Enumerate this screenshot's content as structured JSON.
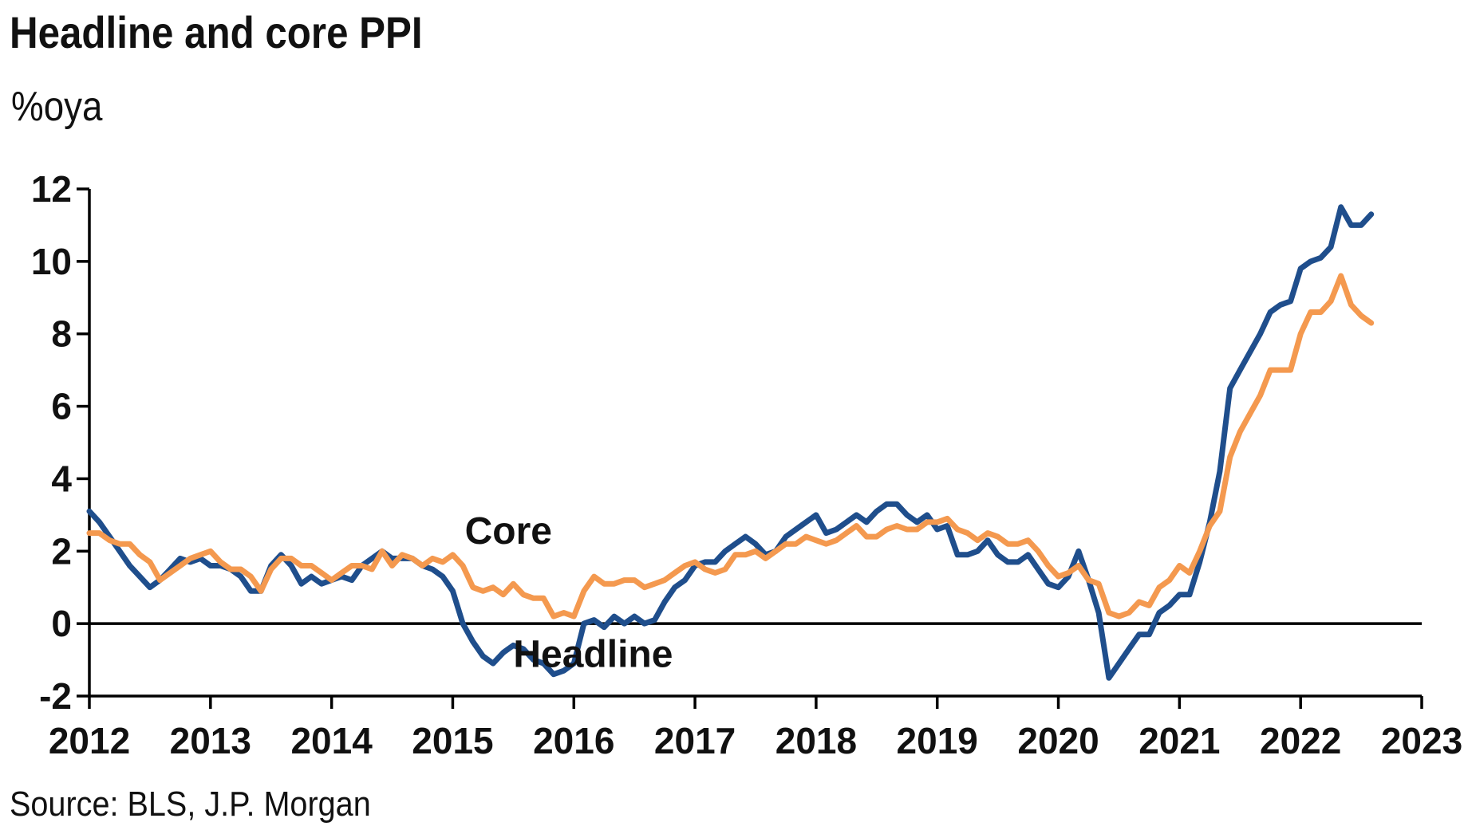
{
  "chart_data": {
    "type": "line",
    "title": "Headline and core PPI",
    "ylabel": "%oya",
    "source": "Source: BLS, J.P. Morgan",
    "ylim": [
      -2,
      12
    ],
    "xlim": [
      2012,
      2023
    ],
    "yticks": [
      "-2",
      "0",
      "2",
      "4",
      "6",
      "8",
      "10",
      "12"
    ],
    "xticks": [
      "2012",
      "2013",
      "2014",
      "2015",
      "2016",
      "2017",
      "2018",
      "2019",
      "2020",
      "2021",
      "2022",
      "2023"
    ],
    "grid": false,
    "series": [
      {
        "name": "Headline",
        "color": "#1f4e8c",
        "label_pos": [
          2015.5,
          -1.2
        ],
        "points": [
          [
            2012.0,
            3.1
          ],
          [
            2012.083,
            2.8
          ],
          [
            2012.167,
            2.4
          ],
          [
            2012.25,
            2.0
          ],
          [
            2012.333,
            1.6
          ],
          [
            2012.417,
            1.3
          ],
          [
            2012.5,
            1.0
          ],
          [
            2012.583,
            1.2
          ],
          [
            2012.667,
            1.5
          ],
          [
            2012.75,
            1.8
          ],
          [
            2012.833,
            1.7
          ],
          [
            2012.917,
            1.8
          ],
          [
            2013.0,
            1.6
          ],
          [
            2013.083,
            1.6
          ],
          [
            2013.167,
            1.5
          ],
          [
            2013.25,
            1.3
          ],
          [
            2013.333,
            0.9
          ],
          [
            2013.417,
            0.9
          ],
          [
            2013.5,
            1.6
          ],
          [
            2013.583,
            1.9
          ],
          [
            2013.667,
            1.6
          ],
          [
            2013.75,
            1.1
          ],
          [
            2013.833,
            1.3
          ],
          [
            2013.917,
            1.1
          ],
          [
            2014.0,
            1.2
          ],
          [
            2014.083,
            1.3
          ],
          [
            2014.167,
            1.2
          ],
          [
            2014.25,
            1.6
          ],
          [
            2014.333,
            1.8
          ],
          [
            2014.417,
            2.0
          ],
          [
            2014.5,
            1.8
          ],
          [
            2014.583,
            1.8
          ],
          [
            2014.667,
            1.8
          ],
          [
            2014.75,
            1.6
          ],
          [
            2014.833,
            1.5
          ],
          [
            2014.917,
            1.3
          ],
          [
            2015.0,
            0.9
          ],
          [
            2015.083,
            0.0
          ],
          [
            2015.167,
            -0.5
          ],
          [
            2015.25,
            -0.9
          ],
          [
            2015.333,
            -1.1
          ],
          [
            2015.417,
            -0.8
          ],
          [
            2015.5,
            -0.6
          ],
          [
            2015.583,
            -0.7
          ],
          [
            2015.667,
            -1.0
          ],
          [
            2015.75,
            -1.1
          ],
          [
            2015.833,
            -1.4
          ],
          [
            2015.917,
            -1.3
          ],
          [
            2016.0,
            -1.1
          ],
          [
            2016.083,
            0.0
          ],
          [
            2016.167,
            0.1
          ],
          [
            2016.25,
            -0.1
          ],
          [
            2016.333,
            0.2
          ],
          [
            2016.417,
            0.0
          ],
          [
            2016.5,
            0.2
          ],
          [
            2016.583,
            0.0
          ],
          [
            2016.667,
            0.1
          ],
          [
            2016.75,
            0.6
          ],
          [
            2016.833,
            1.0
          ],
          [
            2016.917,
            1.2
          ],
          [
            2017.0,
            1.6
          ],
          [
            2017.083,
            1.7
          ],
          [
            2017.167,
            1.7
          ],
          [
            2017.25,
            2.0
          ],
          [
            2017.333,
            2.2
          ],
          [
            2017.417,
            2.4
          ],
          [
            2017.5,
            2.2
          ],
          [
            2017.583,
            1.9
          ],
          [
            2017.667,
            2.0
          ],
          [
            2017.75,
            2.4
          ],
          [
            2017.833,
            2.6
          ],
          [
            2017.917,
            2.8
          ],
          [
            2018.0,
            3.0
          ],
          [
            2018.083,
            2.5
          ],
          [
            2018.167,
            2.6
          ],
          [
            2018.25,
            2.8
          ],
          [
            2018.333,
            3.0
          ],
          [
            2018.417,
            2.8
          ],
          [
            2018.5,
            3.1
          ],
          [
            2018.583,
            3.3
          ],
          [
            2018.667,
            3.3
          ],
          [
            2018.75,
            3.0
          ],
          [
            2018.833,
            2.8
          ],
          [
            2018.917,
            3.0
          ],
          [
            2019.0,
            2.6
          ],
          [
            2019.083,
            2.7
          ],
          [
            2019.167,
            1.9
          ],
          [
            2019.25,
            1.9
          ],
          [
            2019.333,
            2.0
          ],
          [
            2019.417,
            2.3
          ],
          [
            2019.5,
            1.9
          ],
          [
            2019.583,
            1.7
          ],
          [
            2019.667,
            1.7
          ],
          [
            2019.75,
            1.9
          ],
          [
            2019.833,
            1.5
          ],
          [
            2019.917,
            1.1
          ],
          [
            2020.0,
            1.0
          ],
          [
            2020.083,
            1.3
          ],
          [
            2020.167,
            2.0
          ],
          [
            2020.25,
            1.2
          ],
          [
            2020.333,
            0.3
          ],
          [
            2020.417,
            -1.5
          ],
          [
            2020.5,
            -1.1
          ],
          [
            2020.583,
            -0.7
          ],
          [
            2020.667,
            -0.3
          ],
          [
            2020.75,
            -0.3
          ],
          [
            2020.833,
            0.3
          ],
          [
            2020.917,
            0.5
          ],
          [
            2021.0,
            0.8
          ],
          [
            2021.083,
            0.8
          ],
          [
            2021.167,
            1.7
          ],
          [
            2021.25,
            2.8
          ],
          [
            2021.333,
            4.2
          ],
          [
            2021.417,
            6.5
          ],
          [
            2021.5,
            7.0
          ],
          [
            2021.583,
            7.5
          ],
          [
            2021.667,
            8.0
          ],
          [
            2021.75,
            8.6
          ],
          [
            2021.833,
            8.8
          ],
          [
            2021.917,
            8.9
          ],
          [
            2022.0,
            9.8
          ],
          [
            2022.083,
            10.0
          ],
          [
            2022.167,
            10.1
          ],
          [
            2022.25,
            10.4
          ],
          [
            2022.333,
            11.5
          ],
          [
            2022.417,
            11.0
          ],
          [
            2022.5,
            11.0
          ],
          [
            2022.583,
            11.3
          ]
        ]
      },
      {
        "name": "Core",
        "color": "#f4994f",
        "label_pos": [
          2015.1,
          2.2
        ],
        "points": [
          [
            2012.0,
            2.5
          ],
          [
            2012.083,
            2.5
          ],
          [
            2012.167,
            2.3
          ],
          [
            2012.25,
            2.2
          ],
          [
            2012.333,
            2.2
          ],
          [
            2012.417,
            1.9
          ],
          [
            2012.5,
            1.7
          ],
          [
            2012.583,
            1.2
          ],
          [
            2012.667,
            1.4
          ],
          [
            2012.75,
            1.6
          ],
          [
            2012.833,
            1.8
          ],
          [
            2012.917,
            1.9
          ],
          [
            2013.0,
            2.0
          ],
          [
            2013.083,
            1.7
          ],
          [
            2013.167,
            1.5
          ],
          [
            2013.25,
            1.5
          ],
          [
            2013.333,
            1.3
          ],
          [
            2013.417,
            0.9
          ],
          [
            2013.5,
            1.5
          ],
          [
            2013.583,
            1.8
          ],
          [
            2013.667,
            1.8
          ],
          [
            2013.75,
            1.6
          ],
          [
            2013.833,
            1.6
          ],
          [
            2013.917,
            1.4
          ],
          [
            2014.0,
            1.2
          ],
          [
            2014.083,
            1.4
          ],
          [
            2014.167,
            1.6
          ],
          [
            2014.25,
            1.6
          ],
          [
            2014.333,
            1.5
          ],
          [
            2014.417,
            2.0
          ],
          [
            2014.5,
            1.6
          ],
          [
            2014.583,
            1.9
          ],
          [
            2014.667,
            1.8
          ],
          [
            2014.75,
            1.6
          ],
          [
            2014.833,
            1.8
          ],
          [
            2014.917,
            1.7
          ],
          [
            2015.0,
            1.9
          ],
          [
            2015.083,
            1.6
          ],
          [
            2015.167,
            1.0
          ],
          [
            2015.25,
            0.9
          ],
          [
            2015.333,
            1.0
          ],
          [
            2015.417,
            0.8
          ],
          [
            2015.5,
            1.1
          ],
          [
            2015.583,
            0.8
          ],
          [
            2015.667,
            0.7
          ],
          [
            2015.75,
            0.7
          ],
          [
            2015.833,
            0.2
          ],
          [
            2015.917,
            0.3
          ],
          [
            2016.0,
            0.2
          ],
          [
            2016.083,
            0.9
          ],
          [
            2016.167,
            1.3
          ],
          [
            2016.25,
            1.1
          ],
          [
            2016.333,
            1.1
          ],
          [
            2016.417,
            1.2
          ],
          [
            2016.5,
            1.2
          ],
          [
            2016.583,
            1.0
          ],
          [
            2016.667,
            1.1
          ],
          [
            2016.75,
            1.2
          ],
          [
            2016.833,
            1.4
          ],
          [
            2016.917,
            1.6
          ],
          [
            2017.0,
            1.7
          ],
          [
            2017.083,
            1.5
          ],
          [
            2017.167,
            1.4
          ],
          [
            2017.25,
            1.5
          ],
          [
            2017.333,
            1.9
          ],
          [
            2017.417,
            1.9
          ],
          [
            2017.5,
            2.0
          ],
          [
            2017.583,
            1.8
          ],
          [
            2017.667,
            2.0
          ],
          [
            2017.75,
            2.2
          ],
          [
            2017.833,
            2.2
          ],
          [
            2017.917,
            2.4
          ],
          [
            2018.0,
            2.3
          ],
          [
            2018.083,
            2.2
          ],
          [
            2018.167,
            2.3
          ],
          [
            2018.25,
            2.5
          ],
          [
            2018.333,
            2.7
          ],
          [
            2018.417,
            2.4
          ],
          [
            2018.5,
            2.4
          ],
          [
            2018.583,
            2.6
          ],
          [
            2018.667,
            2.7
          ],
          [
            2018.75,
            2.6
          ],
          [
            2018.833,
            2.6
          ],
          [
            2018.917,
            2.8
          ],
          [
            2019.0,
            2.8
          ],
          [
            2019.083,
            2.9
          ],
          [
            2019.167,
            2.6
          ],
          [
            2019.25,
            2.5
          ],
          [
            2019.333,
            2.3
          ],
          [
            2019.417,
            2.5
          ],
          [
            2019.5,
            2.4
          ],
          [
            2019.583,
            2.2
          ],
          [
            2019.667,
            2.2
          ],
          [
            2019.75,
            2.3
          ],
          [
            2019.833,
            2.0
          ],
          [
            2019.917,
            1.6
          ],
          [
            2020.0,
            1.3
          ],
          [
            2020.083,
            1.4
          ],
          [
            2020.167,
            1.6
          ],
          [
            2020.25,
            1.2
          ],
          [
            2020.333,
            1.1
          ],
          [
            2020.417,
            0.3
          ],
          [
            2020.5,
            0.2
          ],
          [
            2020.583,
            0.3
          ],
          [
            2020.667,
            0.6
          ],
          [
            2020.75,
            0.5
          ],
          [
            2020.833,
            1.0
          ],
          [
            2020.917,
            1.2
          ],
          [
            2021.0,
            1.6
          ],
          [
            2021.083,
            1.4
          ],
          [
            2021.167,
            2.0
          ],
          [
            2021.25,
            2.7
          ],
          [
            2021.333,
            3.1
          ],
          [
            2021.417,
            4.6
          ],
          [
            2021.5,
            5.3
          ],
          [
            2021.583,
            5.8
          ],
          [
            2021.667,
            6.3
          ],
          [
            2021.75,
            7.0
          ],
          [
            2021.833,
            7.0
          ],
          [
            2021.917,
            7.0
          ],
          [
            2022.0,
            8.0
          ],
          [
            2022.083,
            8.6
          ],
          [
            2022.167,
            8.6
          ],
          [
            2022.25,
            8.9
          ],
          [
            2022.333,
            9.6
          ],
          [
            2022.417,
            8.8
          ],
          [
            2022.5,
            8.5
          ],
          [
            2022.583,
            8.3
          ]
        ]
      }
    ]
  }
}
